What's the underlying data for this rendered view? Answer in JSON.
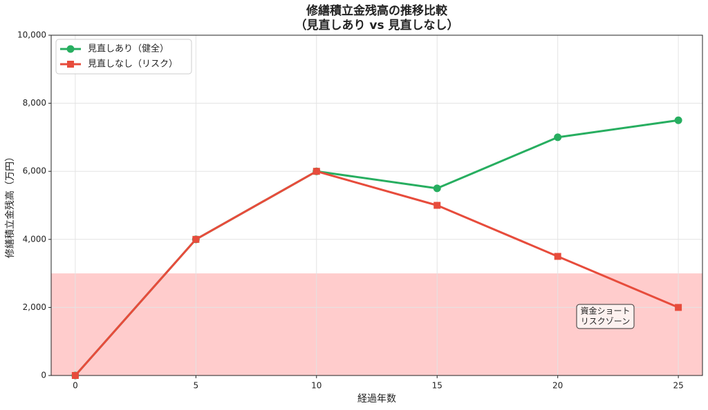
{
  "chart_data": {
    "type": "line",
    "title": [
      "修繕積立金残高の推移比較",
      "（見直しあり vs 見直しなし）"
    ],
    "x_label": "経過年数",
    "y_label": "修繕積立金残高（万円）",
    "x": [
      0,
      5,
      10,
      15,
      20,
      25
    ],
    "series": [
      {
        "name": "見直しあり（健全）",
        "color": "#27ae60",
        "marker": "circle",
        "values": [
          0,
          4000,
          6000,
          5500,
          7000,
          7500
        ]
      },
      {
        "name": "見直しなし（リスク）",
        "color": "#e74c3c",
        "marker": "square",
        "values": [
          0,
          4000,
          6000,
          5000,
          3500,
          2000
        ]
      }
    ],
    "bands": [
      {
        "ymin": 0,
        "ymax": 3000,
        "color": "#ff9999"
      }
    ],
    "annotation": [
      "資金ショート",
      "リスクゾーン"
    ],
    "xlim": [
      -1,
      26
    ],
    "ylim": [
      0,
      10000
    ],
    "xticks": [
      0,
      5,
      10,
      15,
      20,
      25
    ],
    "yticks": [
      0,
      {
        "value": 2000,
        "label": "2,000"
      },
      {
        "value": 4000,
        "label": "4,000"
      },
      {
        "value": 6000,
        "label": "6,000"
      },
      {
        "value": 8000,
        "label": "8,000"
      },
      {
        "value": 10000,
        "label": "10,000"
      }
    ],
    "grid": true,
    "legend": "upper left"
  }
}
